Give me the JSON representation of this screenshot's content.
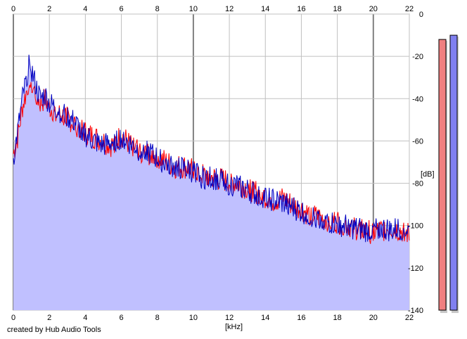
{
  "footer": {
    "credit": "created by Hub Audio Tools"
  },
  "chart_data": {
    "type": "line",
    "xlabel": "[kHz]",
    "ylabel": "[dB]",
    "xlim": [
      0,
      22
    ],
    "ylim": [
      -140,
      0
    ],
    "x_ticks": [
      0,
      2,
      4,
      6,
      8,
      10,
      12,
      14,
      16,
      18,
      20,
      22
    ],
    "y_ticks": [
      0,
      -20,
      -40,
      -60,
      -80,
      -100,
      -120,
      -140
    ],
    "major_x_gridlines": [
      0,
      10,
      20
    ],
    "grid": true,
    "fill_color": "#c0c0ff",
    "series": [
      {
        "color": "#ff0000",
        "x": [
          0,
          0.25,
          0.5,
          0.75,
          0.9,
          1,
          1.25,
          1.5,
          1.75,
          2,
          2.5,
          3,
          3.5,
          4,
          4.5,
          5,
          5.5,
          6,
          6.5,
          7,
          7.5,
          8,
          8.5,
          9,
          9.5,
          10,
          10.5,
          11,
          11.5,
          12,
          12.5,
          13,
          13.5,
          14,
          14.5,
          15,
          15.5,
          16,
          16.5,
          17,
          17.5,
          18,
          18.5,
          19,
          19.5,
          20,
          20.5,
          21,
          21.5,
          22
        ],
        "values": [
          -66,
          -58,
          -44,
          -36,
          -29,
          -32,
          -38,
          -42,
          -40,
          -44,
          -47,
          -49,
          -52,
          -56,
          -58,
          -60,
          -62,
          -57,
          -62,
          -65,
          -66,
          -67,
          -70,
          -72,
          -72,
          -73,
          -76,
          -77,
          -78,
          -79,
          -80,
          -82,
          -84,
          -86,
          -88,
          -87,
          -90,
          -92,
          -95,
          -96,
          -97,
          -98,
          -99,
          -101,
          -102,
          -103,
          -102,
          -101,
          -102,
          -104
        ]
      },
      {
        "color": "#0000c0",
        "x": [
          0,
          0.25,
          0.5,
          0.75,
          0.9,
          1,
          1.25,
          1.5,
          1.75,
          2,
          2.5,
          3,
          3.5,
          4,
          4.5,
          5,
          5.5,
          6,
          6.5,
          7,
          7.5,
          8,
          8.5,
          9,
          9.5,
          10,
          10.5,
          11,
          11.5,
          12,
          12.5,
          13,
          13.5,
          14,
          14.5,
          15,
          15.5,
          16,
          16.5,
          17,
          17.5,
          18,
          18.5,
          19,
          19.5,
          20,
          20.5,
          21,
          21.5,
          22
        ],
        "values": [
          -68,
          -55,
          -40,
          -30,
          -18,
          -26,
          -34,
          -40,
          -38,
          -42,
          -45,
          -48,
          -52,
          -57,
          -60,
          -62,
          -60,
          -58,
          -61,
          -64,
          -65,
          -68,
          -70,
          -72,
          -73,
          -74,
          -77,
          -77,
          -78,
          -80,
          -81,
          -83,
          -85,
          -86,
          -88,
          -89,
          -91,
          -93,
          -95,
          -97,
          -98,
          -99,
          -100,
          -101,
          -102,
          -102,
          -101,
          -102,
          -101,
          -102
        ]
      }
    ],
    "level_meters": [
      {
        "color": "#f08080",
        "value_db": -12
      },
      {
        "color": "#8080f0",
        "value_db": -10
      }
    ]
  }
}
